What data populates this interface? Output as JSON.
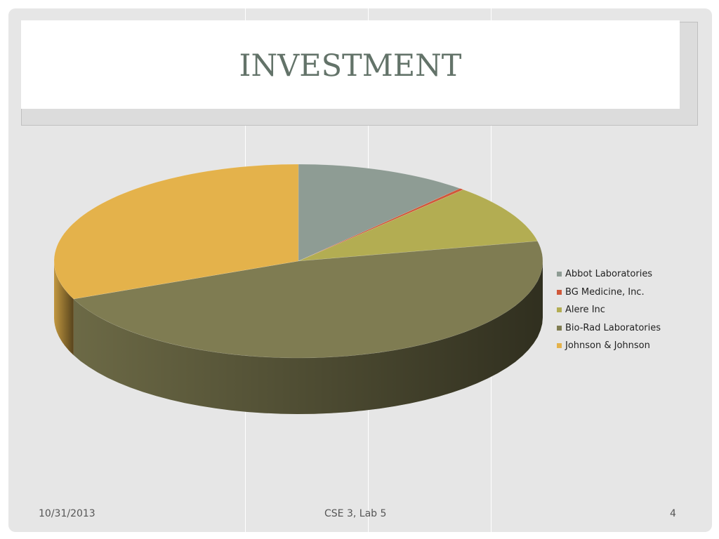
{
  "slide": {
    "title": "INVESTMENT",
    "footer_date": "10/31/2013",
    "footer_center": "CSE 3, Lab 5",
    "page_number": "4"
  },
  "chart_data": {
    "type": "pie",
    "style": "3d",
    "legend_position": "right",
    "categories": [
      "Abbot Laboratories",
      "BG Medicine, Inc.",
      "Alere Inc",
      "Bio-Rad Laboratories",
      "Johnson & Johnson"
    ],
    "values": [
      11.5,
      0.3,
      9.9,
      46.9,
      31.4
    ],
    "colors": [
      "#8e9c94",
      "#d0583a",
      "#b3ad52",
      "#7f7c52",
      "#e4b24b"
    ]
  }
}
